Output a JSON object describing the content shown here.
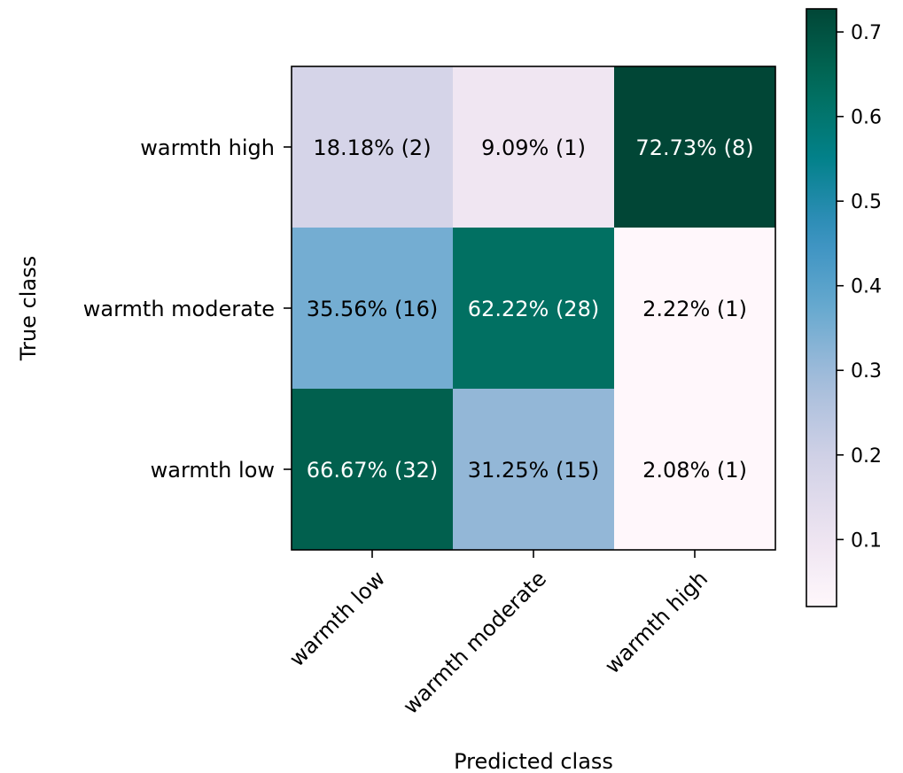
{
  "chart_data": {
    "type": "heatmap",
    "subtype": "confusion-matrix",
    "title": "",
    "xlabel": "Predicted class",
    "ylabel": "True class",
    "x_categories": [
      "warmth low",
      "warmth moderate",
      "warmth high"
    ],
    "y_categories": [
      "warmth high",
      "warmth moderate",
      "warmth low"
    ],
    "values": [
      [
        0.1818,
        0.0909,
        0.7273
      ],
      [
        0.3556,
        0.6222,
        0.0222
      ],
      [
        0.6667,
        0.3125,
        0.0208
      ]
    ],
    "labels": [
      [
        "18.18% (2)",
        "9.09% (1)",
        "72.73% (8)"
      ],
      [
        "35.56% (16)",
        "62.22% (28)",
        "2.22% (1)"
      ],
      [
        "66.67% (32)",
        "31.25% (15)",
        "2.08% (1)"
      ]
    ],
    "colormap": "PuBuGn",
    "colorbar": {
      "range": [
        0.0208,
        0.7273
      ],
      "ticks": [
        0.1,
        0.2,
        0.3,
        0.4,
        0.5,
        0.6,
        0.7
      ],
      "tick_labels": [
        "0.1",
        "0.2",
        "0.3",
        "0.4",
        "0.5",
        "0.6",
        "0.7"
      ]
    },
    "grid": false,
    "colors": {
      "text_dark": "#000000",
      "text_light": "#ffffff"
    }
  }
}
